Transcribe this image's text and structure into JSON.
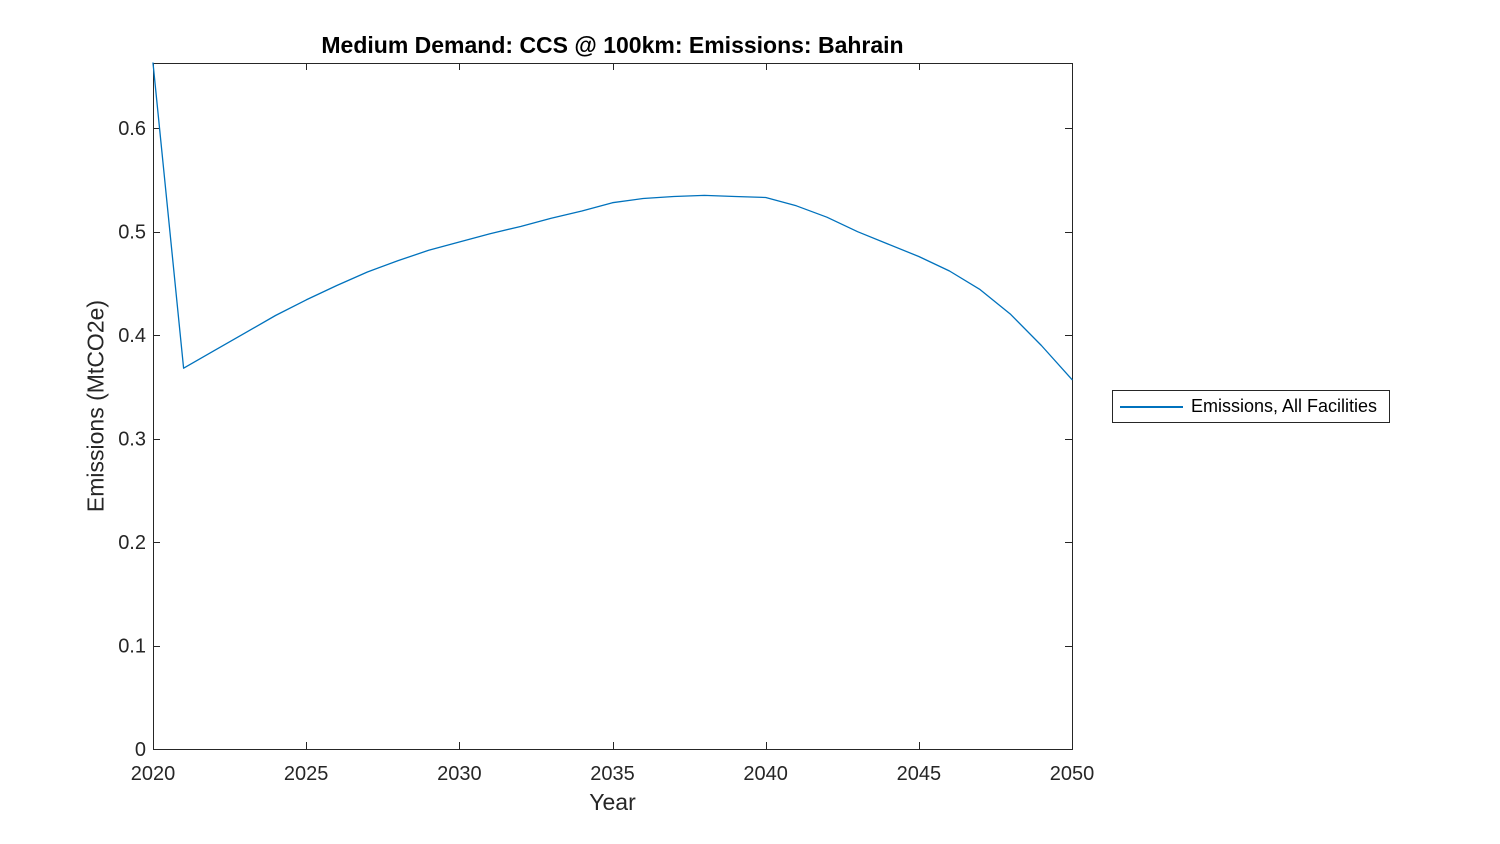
{
  "figure": {
    "background": "#ffffff"
  },
  "chart_data": {
    "type": "line",
    "title": "Medium Demand: CCS @ 100km: Emissions: Bahrain",
    "xlabel": "Year",
    "ylabel": "Emissions (MtCO2e)",
    "x": [
      2020,
      2021,
      2022,
      2023,
      2024,
      2025,
      2026,
      2027,
      2028,
      2029,
      2030,
      2031,
      2032,
      2033,
      2034,
      2035,
      2036,
      2037,
      2038,
      2039,
      2040,
      2041,
      2042,
      2043,
      2044,
      2045,
      2046,
      2047,
      2048,
      2049,
      2050
    ],
    "series": [
      {
        "name": "Emissions, All Facilities",
        "color": "#0072BD",
        "values": [
          0.663,
          0.368,
          0.385,
          0.402,
          0.419,
          0.434,
          0.448,
          0.461,
          0.472,
          0.482,
          0.49,
          0.498,
          0.505,
          0.513,
          0.52,
          0.528,
          0.532,
          0.534,
          0.535,
          0.534,
          0.533,
          0.525,
          0.514,
          0.5,
          0.488,
          0.476,
          0.462,
          0.444,
          0.42,
          0.39,
          0.357
        ]
      }
    ],
    "xlim": [
      2020,
      2050
    ],
    "ylim": [
      0,
      0.663
    ],
    "xticks": [
      2020,
      2025,
      2030,
      2035,
      2040,
      2045,
      2050
    ],
    "xtick_labels": [
      "2020",
      "2025",
      "2030",
      "2035",
      "2040",
      "2045",
      "2050"
    ],
    "yticks": [
      0,
      0.1,
      0.2,
      0.3,
      0.4,
      0.5,
      0.6
    ],
    "ytick_labels": [
      "0",
      "0.1",
      "0.2",
      "0.3",
      "0.4",
      "0.5",
      "0.6"
    ],
    "grid": false,
    "box": true,
    "tick_direction": "in",
    "axis_color": "#262626",
    "tick_label_color": "#262626",
    "legend": {
      "position": "right-outside",
      "entries": [
        "Emissions, All Facilities"
      ]
    }
  }
}
